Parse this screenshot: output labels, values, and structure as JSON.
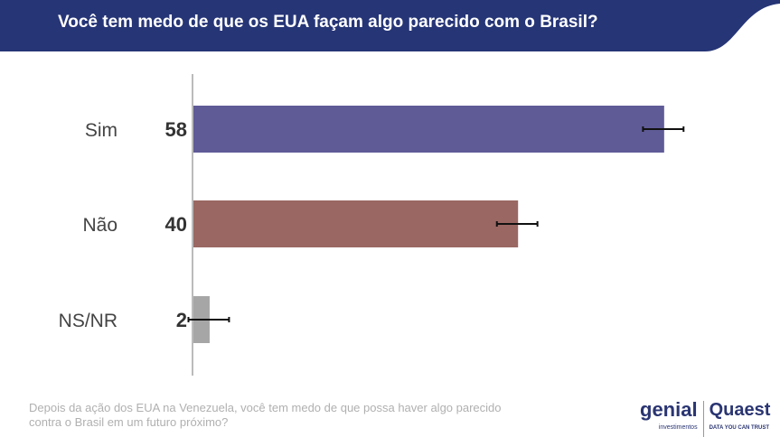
{
  "header": {
    "title": "Você tem medo de que os EUA façam algo parecido com o Brasil?",
    "color": "#263576"
  },
  "chart_data": {
    "type": "bar",
    "orientation": "horizontal",
    "title": "Você tem medo de que os EUA façam algo parecido com o Brasil?",
    "categories": [
      "Sim",
      "Não",
      "NS/NR"
    ],
    "values": [
      58,
      40,
      2
    ],
    "error_margin": 2.5,
    "colors": [
      "#5f5b97",
      "#9a6762",
      "#a6a6a6"
    ],
    "xlim": [
      0,
      70
    ],
    "grid": false
  },
  "footer": {
    "question": "Depois da ação dos EUA na Venezuela, você tem medo de que possa haver algo parecido contra o Brasil em um futuro próximo?"
  },
  "logos": {
    "genial": "genial",
    "genial_sub": "investimentos",
    "quaest": "Quaest",
    "quaest_sub": "DATA YOU CAN TRUST"
  }
}
